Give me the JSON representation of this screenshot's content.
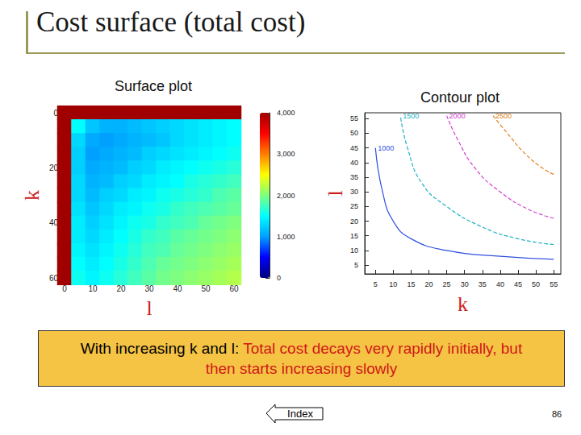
{
  "slide": {
    "title": "Cost surface (total cost)",
    "conclusion": {
      "lead": "With increasing k and l: ",
      "text": "Total cost decays very rapidly initially, but then starts increasing slowly"
    },
    "button": "Index",
    "page": 86
  },
  "chart_data": [
    {
      "type": "heatmap",
      "title": "Surface plot",
      "x_label": "l",
      "y_label": "k",
      "x": [
        0,
        5,
        10,
        15,
        20,
        25,
        30,
        35,
        40,
        45,
        50,
        55,
        60
      ],
      "y": [
        0,
        5,
        10,
        15,
        20,
        25,
        30,
        35,
        40,
        45,
        50,
        55,
        60
      ],
      "z": [
        [
          4000,
          4000,
          4000,
          4000,
          4000,
          4000,
          4000,
          4000,
          4000,
          4000,
          4000,
          4000,
          4000
        ],
        [
          4000,
          1500,
          1200,
          1100,
          1100,
          1150,
          1200,
          1250,
          1300,
          1350,
          1400,
          1450,
          1500
        ],
        [
          4000,
          1300,
          1050,
          1000,
          1050,
          1100,
          1150,
          1200,
          1300,
          1350,
          1400,
          1450,
          1500
        ],
        [
          4000,
          1250,
          1000,
          1050,
          1100,
          1150,
          1250,
          1300,
          1350,
          1400,
          1450,
          1500,
          1550
        ],
        [
          4000,
          1250,
          1050,
          1100,
          1150,
          1250,
          1300,
          1400,
          1450,
          1500,
          1550,
          1600,
          1650
        ],
        [
          4000,
          1300,
          1100,
          1150,
          1250,
          1300,
          1400,
          1450,
          1500,
          1600,
          1650,
          1700,
          1750
        ],
        [
          4000,
          1300,
          1150,
          1250,
          1300,
          1400,
          1450,
          1550,
          1600,
          1650,
          1700,
          1800,
          1850
        ],
        [
          4000,
          1350,
          1200,
          1300,
          1400,
          1450,
          1550,
          1600,
          1700,
          1750,
          1800,
          1850,
          1900
        ],
        [
          4000,
          1400,
          1250,
          1350,
          1450,
          1550,
          1600,
          1700,
          1750,
          1800,
          1900,
          1950,
          2000
        ],
        [
          4000,
          1400,
          1300,
          1400,
          1500,
          1600,
          1700,
          1750,
          1850,
          1900,
          1950,
          2000,
          2050
        ],
        [
          4000,
          1450,
          1350,
          1450,
          1550,
          1650,
          1750,
          1800,
          1900,
          1950,
          2000,
          2050,
          2100
        ],
        [
          4000,
          1500,
          1400,
          1500,
          1600,
          1700,
          1800,
          1900,
          1950,
          2000,
          2050,
          2100,
          2150
        ],
        [
          4000,
          1550,
          1450,
          1550,
          1650,
          1750,
          1850,
          1950,
          2000,
          2050,
          2100,
          2150,
          2200
        ]
      ],
      "xlim": [
        0,
        60
      ],
      "xticks": [
        0,
        10,
        20,
        30,
        40,
        50,
        60
      ],
      "ylim": [
        0,
        60
      ],
      "yticks": [
        0,
        20,
        40,
        60
      ],
      "zlim": [
        0,
        4000
      ],
      "zticks": [
        0,
        1000,
        2000,
        3000,
        4000
      ]
    },
    {
      "type": "line",
      "title": "Contour plot",
      "x_label": "k",
      "y_label": "l",
      "xlim": [
        2,
        57
      ],
      "xticks": [
        5,
        10,
        15,
        20,
        25,
        30,
        35,
        40,
        45,
        50,
        55
      ],
      "ylim": [
        2,
        57
      ],
      "yticks": [
        5,
        10,
        15,
        20,
        25,
        30,
        35,
        40,
        45,
        50,
        55
      ],
      "grid": false,
      "series": [
        {
          "name": "1000",
          "color": "#2f4fe0",
          "line_style": "solid",
          "x": [
            55,
            40,
            25,
            15,
            10,
            7,
            5
          ],
          "values": [
            7,
            8,
            10,
            14,
            20,
            30,
            45
          ]
        },
        {
          "name": "1500",
          "color": "#1fb0c4",
          "line_style": "dashed",
          "x": [
            55,
            45,
            35,
            25,
            18,
            14,
            12
          ],
          "values": [
            12,
            14,
            18,
            25,
            33,
            45,
            56
          ]
        },
        {
          "name": "2000",
          "color": "#d040d0",
          "line_style": "dashed",
          "x": [
            55,
            48,
            40,
            33,
            28,
            25
          ],
          "values": [
            21,
            24,
            30,
            38,
            48,
            56
          ]
        },
        {
          "name": "2500",
          "color": "#e08020",
          "line_style": "dashed",
          "x": [
            55,
            52,
            47,
            42,
            38
          ],
          "values": [
            36,
            38,
            43,
            50,
            56
          ]
        }
      ]
    }
  ]
}
